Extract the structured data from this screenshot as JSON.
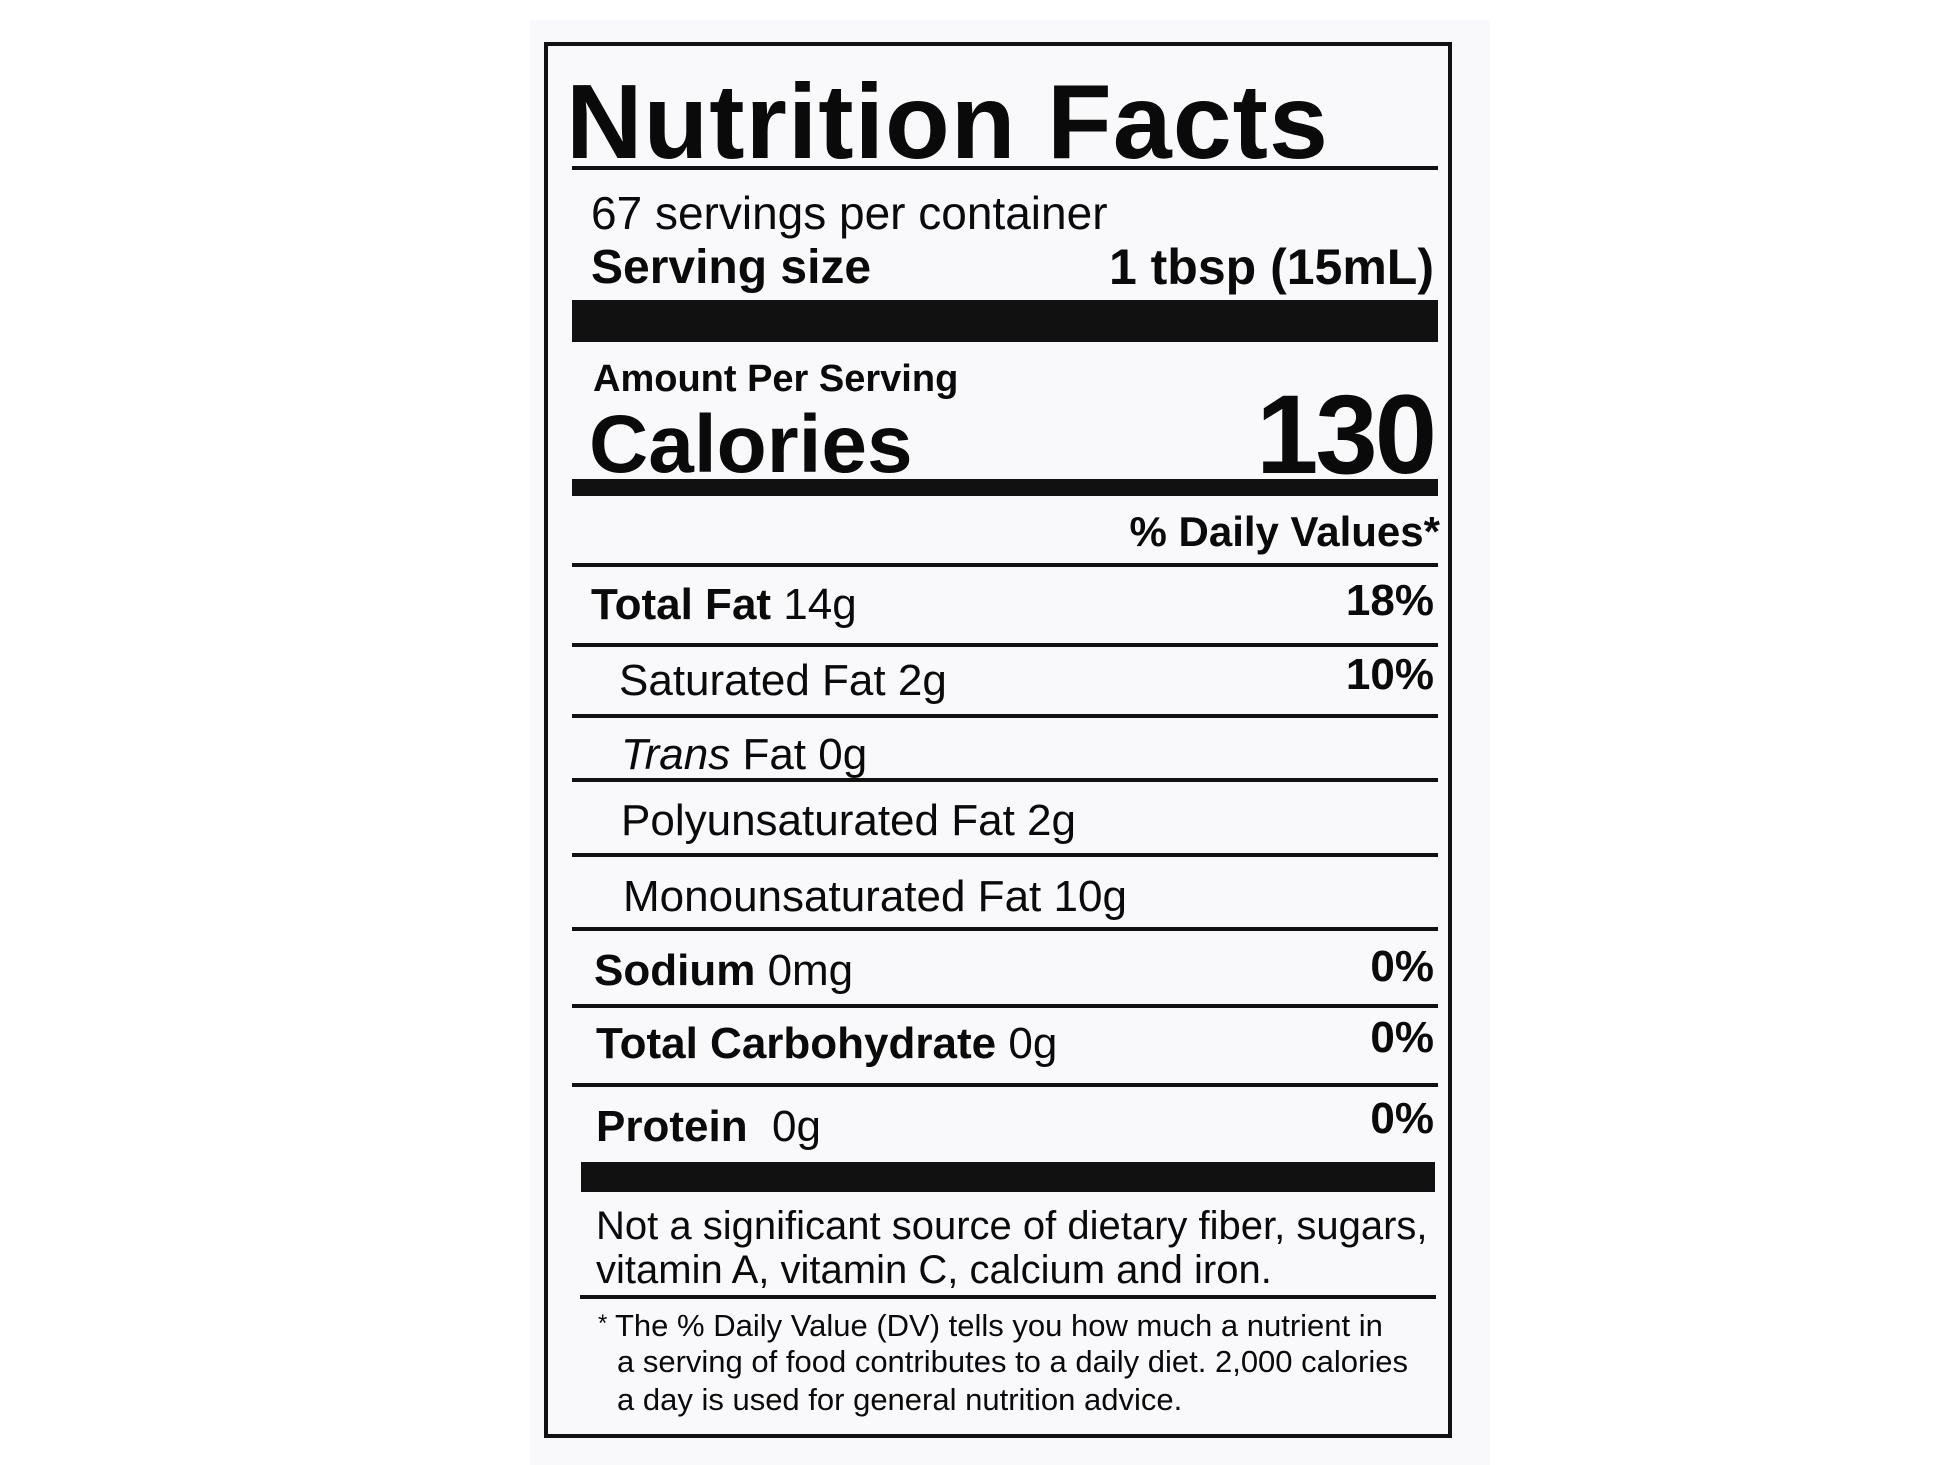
{
  "label": {
    "title": "Nutrition Facts",
    "servings_per_container": "67 servings per container",
    "serving_size_label": "Serving size",
    "serving_size_value": "1 tbsp (15mL)",
    "amount_per_serving": "Amount Per Serving",
    "calories_label": "Calories",
    "calories_value": "130",
    "daily_values_header": "% Daily Values*",
    "nutrients": [
      {
        "name": "Total Fat",
        "amount": "14g",
        "dv": "18%"
      },
      {
        "name": "Saturated Fat",
        "amount": "2g",
        "dv": "10%"
      },
      {
        "name_italic": "Trans",
        "name": "Fat",
        "amount": "0g"
      },
      {
        "name": "Polyunsaturated Fat",
        "amount": "2g"
      },
      {
        "name": "Monounsaturated Fat",
        "amount": "10g"
      },
      {
        "name": "Sodium",
        "amount": "0mg",
        "dv": "0%"
      },
      {
        "name": "Total Carbohydrate",
        "amount": "0g",
        "dv": "0%"
      },
      {
        "name": "Protein",
        "amount": "0g",
        "dv": "0%"
      }
    ],
    "not_significant_line1": "Not a significant source of dietary fiber, sugars,",
    "not_significant_line2": "vitamin A, vitamin C, calcium and iron.",
    "footnote_star": "*",
    "footnote_line1": "The % Daily Value (DV) tells you how much a nutrient in",
    "footnote_line2": "a serving of food contributes to a daily diet. 2,000 calories",
    "footnote_line3": "a day is used for general nutrition advice."
  }
}
